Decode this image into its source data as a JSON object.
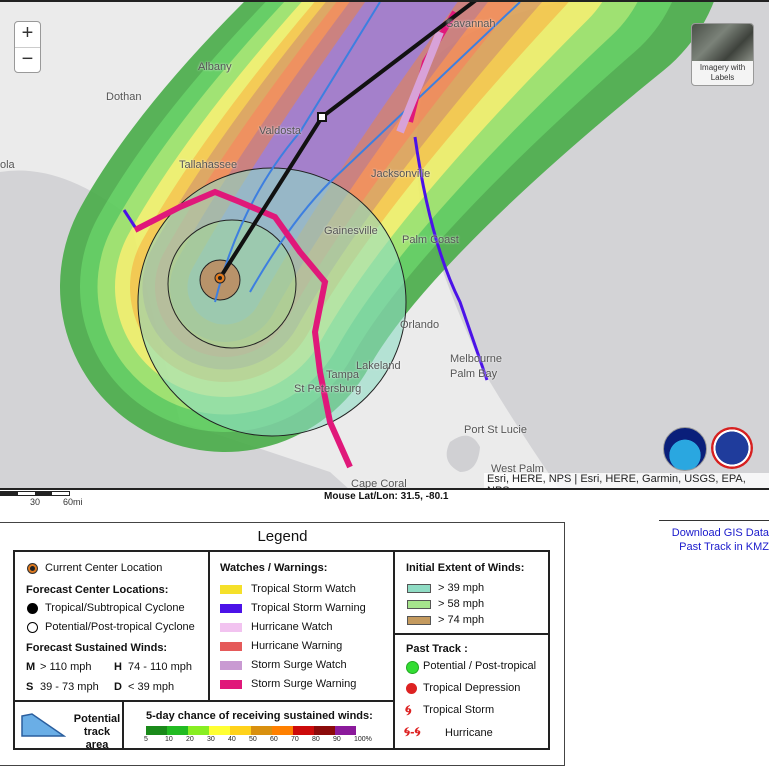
{
  "map": {
    "zoom_in": "+",
    "zoom_out": "−",
    "basemap_label": "Imagery with Labels",
    "attribution": "Esri, HERE, NPS | Esri, HERE, Garmin, USGS, EPA, NPS",
    "cities": [
      "Savannah",
      "Albany",
      "Dothan",
      "Valdosta",
      "Jacksonville",
      "Tallahassee",
      "Gainesville",
      "Palm Coast",
      "Orlando",
      "Melbourne",
      "Palm Bay",
      "Lakeland",
      "Tampa",
      "St Petersburg",
      "Port St Lucie",
      "West Palm",
      "Cape Coral",
      "ola"
    ],
    "logos": [
      "NOAA",
      "National Weather Service"
    ],
    "scale_labels": [
      "30",
      "60mi"
    ],
    "mouse_readout": "Mouse Lat/Lon: 31.5, -80.1"
  },
  "legend": {
    "title": "Legend",
    "current_center": "Current Center Location",
    "forecast_center_heading": "Forecast Center Locations:",
    "tropical_cyclone": "Tropical/Subtropical Cyclone",
    "post_tropical": "Potential/Post-tropical Cyclone",
    "sustained_heading": "Forecast Sustained Winds:",
    "winds": [
      {
        "code": "M",
        "range": "> 110 mph"
      },
      {
        "code": "H",
        "range": "74 - 110 mph"
      },
      {
        "code": "S",
        "range": "39 - 73 mph"
      },
      {
        "code": "D",
        "range": "< 39 mph"
      }
    ],
    "watches_heading": "Watches / Warnings:",
    "watches": [
      {
        "label": "Tropical Storm Watch",
        "color": "#f5e02a"
      },
      {
        "label": "Tropical Storm Warning",
        "color": "#4b12e8"
      },
      {
        "label": "Hurricane Watch",
        "color": "#f2c3f0"
      },
      {
        "label": "Hurricane Warning",
        "color": "#e55a5a"
      },
      {
        "label": "Storm Surge Watch",
        "color": "#c99ad2"
      },
      {
        "label": "Storm Surge Warning",
        "color": "#e0187a"
      }
    ],
    "extent_heading": "Initial Extent of Winds:",
    "extent": [
      {
        "label": "> 39 mph",
        "color": "#8fdcc4"
      },
      {
        "label": "> 58 mph",
        "color": "#a6e48c"
      },
      {
        "label": "> 74 mph",
        "color": "#c49a5e"
      }
    ],
    "past_track_heading": "Past Track :",
    "past_track": [
      {
        "label": "Potential / Post-tropical",
        "color": "#33dd33"
      },
      {
        "label": "Tropical Depression",
        "color": "#dd2222"
      },
      {
        "label": "Tropical Storm",
        "color": "#dd2222"
      },
      {
        "label": "Hurricane",
        "color": "#dd2222"
      }
    ],
    "potential_track": "Potential track area",
    "chance_heading": "5-day chance of receiving sustained winds:",
    "chance_colors": [
      "#1a8a1a",
      "#22bb22",
      "#88ee22",
      "#ffff33",
      "#ffd21a",
      "#d9900f",
      "#ff8000",
      "#cc0a0a",
      "#8b0a0a",
      "#8b1a9b"
    ],
    "chance_ticks": [
      "5",
      "10",
      "20",
      "30",
      "40",
      "50",
      "60",
      "70",
      "80",
      "90",
      "100%"
    ]
  },
  "links": {
    "download_gis": "Download GIS Data",
    "past_track_kmz": "Past Track in KMZ"
  }
}
